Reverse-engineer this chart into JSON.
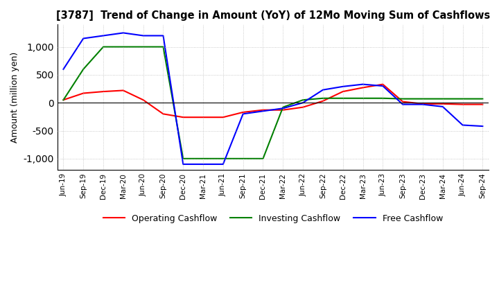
{
  "title": "[3787]  Trend of Change in Amount (YoY) of 12Mo Moving Sum of Cashflows",
  "ylabel": "Amount (million yen)",
  "ylim": [
    -1200,
    1400
  ],
  "yticks": [
    -1000,
    -500,
    0,
    500,
    1000
  ],
  "background_color": "#ffffff",
  "grid_color": "#aaaaaa",
  "x_labels": [
    "Jun-19",
    "Sep-19",
    "Dec-19",
    "Mar-20",
    "Jun-20",
    "Sep-20",
    "Dec-20",
    "Mar-21",
    "Jun-21",
    "Sep-21",
    "Dec-21",
    "Mar-22",
    "Jun-22",
    "Sep-22",
    "Dec-22",
    "Mar-23",
    "Jun-23",
    "Sep-23",
    "Dec-23",
    "Mar-24",
    "Jun-24",
    "Sep-24"
  ],
  "operating_cashflow": [
    50,
    170,
    200,
    220,
    50,
    -200,
    -260,
    -260,
    -260,
    -170,
    -130,
    -130,
    -80,
    30,
    200,
    270,
    330,
    20,
    -20,
    -20,
    -30,
    -30
  ],
  "investing_cashflow": [
    50,
    600,
    1000,
    1000,
    1000,
    1000,
    -1000,
    -1000,
    -1000,
    -1000,
    -1000,
    -80,
    50,
    80,
    80,
    80,
    80,
    70,
    70,
    70,
    70,
    70
  ],
  "free_cashflow": [
    600,
    1150,
    1200,
    1250,
    1200,
    1200,
    -1100,
    -1100,
    -1100,
    -200,
    -150,
    -100,
    0,
    230,
    290,
    330,
    300,
    -30,
    -30,
    -70,
    -400,
    -420
  ],
  "operating_color": "#ff0000",
  "investing_color": "#008000",
  "free_color": "#0000ff",
  "legend_labels": [
    "Operating Cashflow",
    "Investing Cashflow",
    "Free Cashflow"
  ]
}
